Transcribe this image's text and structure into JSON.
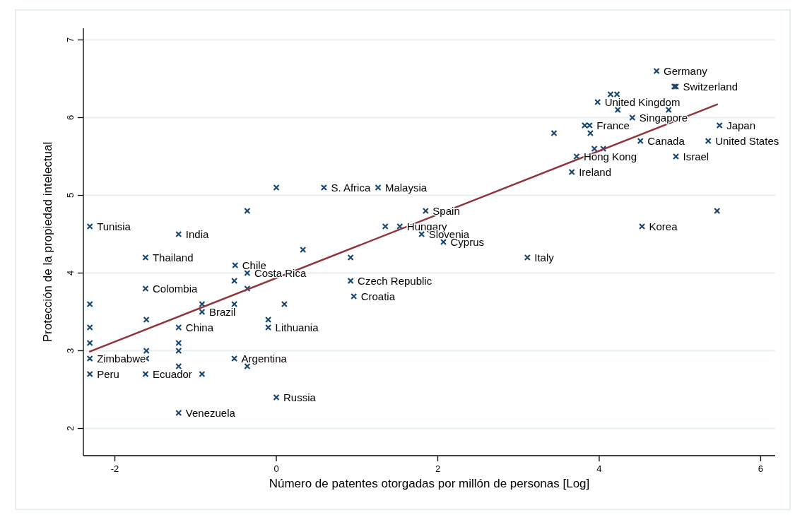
{
  "chart_data": {
    "type": "scatter",
    "xlabel": "Número de patentes otorgadas por millón de personas [Log]",
    "ylabel": "Protección de la propiedad intelectual",
    "xlim": [
      -2.39,
      6.18
    ],
    "xticks": [
      -2,
      0,
      2,
      4,
      6
    ],
    "ylim": [
      1.65,
      7.15
    ],
    "yticks": [
      2,
      3,
      4,
      5,
      6,
      7
    ],
    "grid": "y",
    "marker": "cross",
    "series": [
      {
        "color": "#1a476f",
        "x": [
          -2.31,
          -1.21,
          -1.62,
          -1.62,
          -0.51,
          -0.36,
          -0.92,
          -1.21,
          -0.1,
          -2.31,
          -2.31,
          -1.62,
          -0.52,
          0.0,
          -1.21,
          0.59,
          1.26,
          1.85,
          1.53,
          1.8,
          2.07,
          3.11,
          0.92,
          0.96,
          4.71,
          4.95,
          3.98,
          4.41,
          3.88,
          5.49,
          4.51,
          5.35,
          3.72,
          4.95,
          3.66,
          4.53,
          4.14,
          4.22,
          4.23,
          4.86,
          3.44,
          3.82,
          3.89,
          3.94,
          4.05,
          5.46,
          1.35,
          4.93,
          0.0,
          -0.36,
          0.33,
          0.92,
          -0.52,
          -0.36,
          -2.31,
          -0.92,
          -0.52,
          0.1,
          -1.61,
          -0.1,
          -2.31,
          -2.31,
          -1.21,
          -1.61,
          -1.21,
          -1.61,
          -1.21,
          -0.36,
          -0.92
        ],
        "values": [
          4.6,
          4.5,
          4.2,
          3.8,
          4.1,
          4.0,
          3.5,
          3.3,
          3.3,
          2.9,
          2.7,
          2.7,
          2.9,
          2.4,
          2.2,
          5.1,
          5.1,
          4.8,
          4.6,
          4.5,
          4.4,
          4.2,
          3.9,
          3.7,
          6.6,
          6.4,
          6.2,
          6.0,
          5.9,
          5.9,
          5.7,
          5.7,
          5.5,
          5.5,
          5.3,
          4.6,
          6.3,
          6.3,
          6.1,
          6.1,
          5.8,
          5.9,
          5.8,
          5.6,
          5.6,
          4.8,
          4.6,
          6.4,
          5.1,
          4.8,
          4.3,
          4.2,
          3.9,
          3.8,
          3.6,
          3.6,
          3.6,
          3.6,
          3.4,
          3.4,
          3.3,
          3.1,
          3.1,
          3.0,
          3.0,
          2.9,
          2.8,
          2.8,
          2.7
        ]
      },
      {
        "type": "line",
        "marker": "none",
        "color": "#90353b",
        "x": [
          -2.31,
          5.46
        ],
        "values": [
          2.99,
          6.17
        ]
      }
    ],
    "annotations": [
      {
        "text": "Tunisia",
        "x": -2.31,
        "y": 4.6
      },
      {
        "text": "India",
        "x": -1.21,
        "y": 4.5
      },
      {
        "text": "Thailand",
        "x": -1.62,
        "y": 4.2
      },
      {
        "text": "Colombia",
        "x": -1.62,
        "y": 3.8
      },
      {
        "text": "Chile",
        "x": -0.51,
        "y": 4.1
      },
      {
        "text": "Costa Rica",
        "x": -0.36,
        "y": 4.0
      },
      {
        "text": "Brazil",
        "x": -0.92,
        "y": 3.5
      },
      {
        "text": "China",
        "x": -1.21,
        "y": 3.3
      },
      {
        "text": "Lithuania",
        "x": -0.1,
        "y": 3.3
      },
      {
        "text": "Zimbabwe",
        "x": -2.31,
        "y": 2.9
      },
      {
        "text": "Peru",
        "x": -2.31,
        "y": 2.7
      },
      {
        "text": "Ecuador",
        "x": -1.62,
        "y": 2.7
      },
      {
        "text": "Argentina",
        "x": -0.52,
        "y": 2.9
      },
      {
        "text": "Russia",
        "x": 0.0,
        "y": 2.4
      },
      {
        "text": "Venezuela",
        "x": -1.21,
        "y": 2.2
      },
      {
        "text": "S. Africa",
        "x": 0.59,
        "y": 5.1
      },
      {
        "text": "Malaysia",
        "x": 1.26,
        "y": 5.1
      },
      {
        "text": "Spain",
        "x": 1.85,
        "y": 4.8
      },
      {
        "text": "Hungary",
        "x": 1.53,
        "y": 4.6
      },
      {
        "text": "Slovenia",
        "x": 1.8,
        "y": 4.5
      },
      {
        "text": "Cyprus",
        "x": 2.07,
        "y": 4.4
      },
      {
        "text": "Italy",
        "x": 3.11,
        "y": 4.2
      },
      {
        "text": "Czech Republic",
        "x": 0.92,
        "y": 3.9
      },
      {
        "text": "Croatia",
        "x": 0.96,
        "y": 3.7
      },
      {
        "text": "Germany",
        "x": 4.71,
        "y": 6.6
      },
      {
        "text": "Switzerland",
        "x": 4.95,
        "y": 6.4
      },
      {
        "text": "United Kingdom",
        "x": 3.98,
        "y": 6.2
      },
      {
        "text": "Singapore",
        "x": 4.41,
        "y": 6.0
      },
      {
        "text": "France",
        "x": 3.88,
        "y": 5.9
      },
      {
        "text": "Japan",
        "x": 5.49,
        "y": 5.9
      },
      {
        "text": "Canada",
        "x": 4.51,
        "y": 5.7
      },
      {
        "text": "United States",
        "x": 5.35,
        "y": 5.7
      },
      {
        "text": "Hong Kong",
        "x": 3.72,
        "y": 5.5
      },
      {
        "text": "Israel",
        "x": 4.95,
        "y": 5.5
      },
      {
        "text": "Ireland",
        "x": 3.66,
        "y": 5.3
      },
      {
        "text": "Korea",
        "x": 4.53,
        "y": 4.6
      }
    ]
  }
}
